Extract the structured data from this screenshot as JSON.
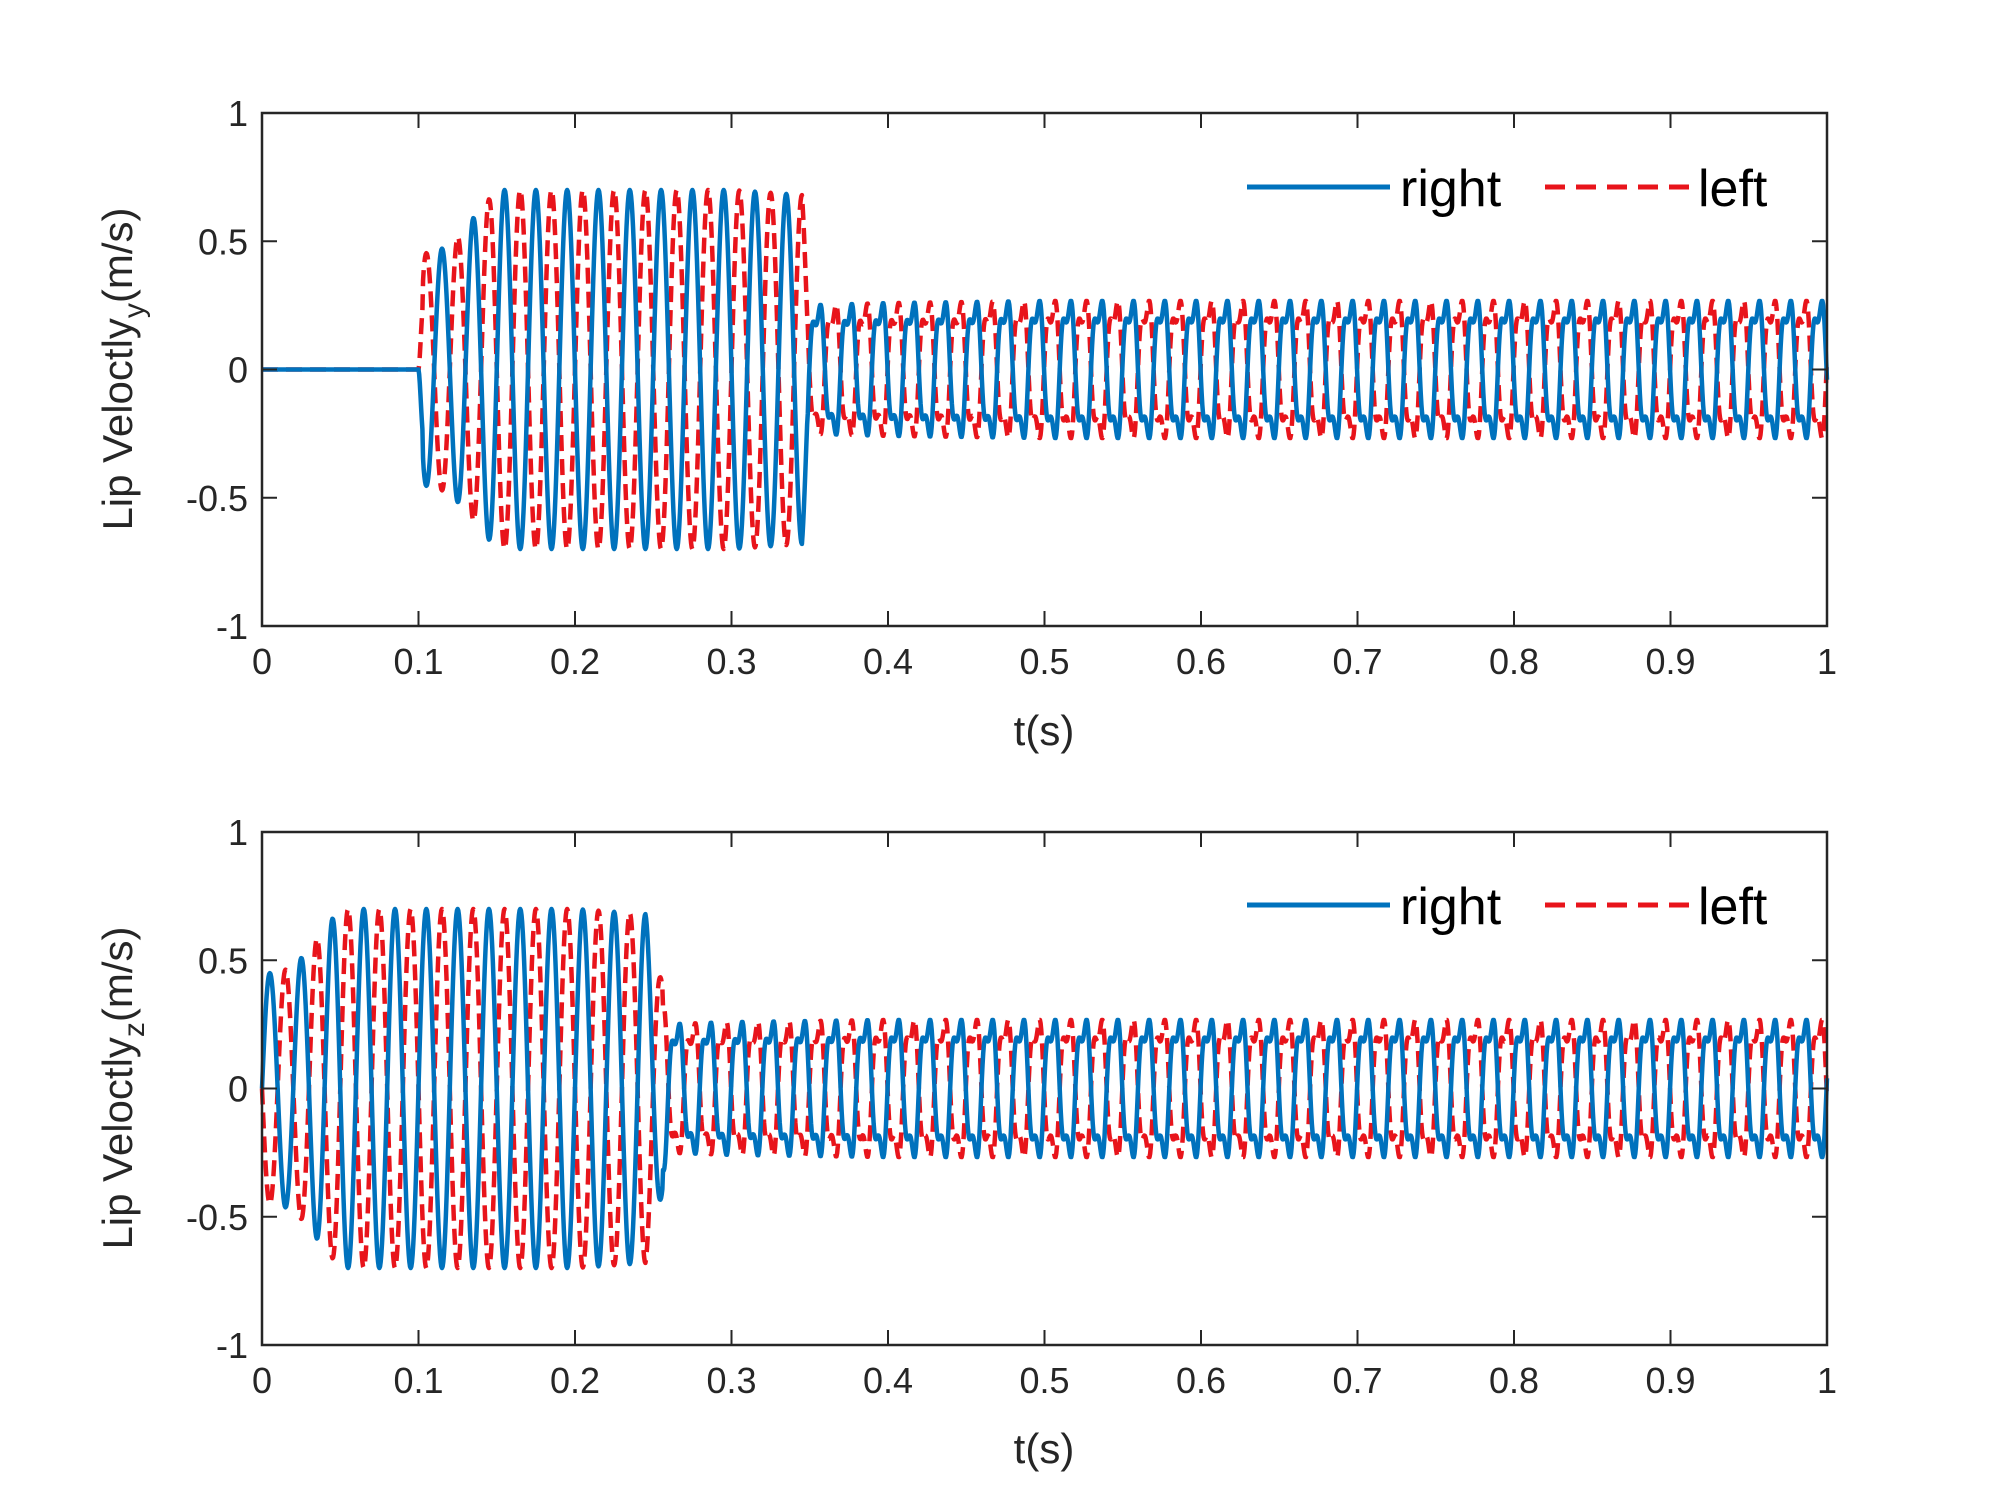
{
  "chart_data": [
    {
      "type": "line",
      "xlabel": "t(s)",
      "ylabel": {
        "base": "Lip Veloctly",
        "subscript": "y",
        "unit": "(m/s)"
      },
      "xlim": [
        0,
        1
      ],
      "ylim": [
        -1,
        1
      ],
      "xticks": [
        "0",
        "0.1",
        "0.2",
        "0.3",
        "0.4",
        "0.5",
        "0.6",
        "0.7",
        "0.8",
        "0.9",
        "1"
      ],
      "yticks": [
        "-1",
        "-0.5",
        "0",
        "0.5",
        "1"
      ],
      "grid": false,
      "legend": {
        "position": "top-right",
        "orientation": "horizontal"
      },
      "series": [
        {
          "name": "right",
          "color": "#0072BD",
          "dash": "solid",
          "x": [
            0,
            0.1,
            0.103,
            0.12,
            0.15,
            0.2,
            0.3,
            0.345,
            0.35,
            0.4,
            0.5,
            0.6,
            0.7,
            0.8,
            0.9,
            1.0
          ],
          "envelope_y": [
            0,
            0,
            0.45,
            0.48,
            0.7,
            0.7,
            0.7,
            0.68,
            0.3,
            0.31,
            0.32,
            0.32,
            0.32,
            0.32,
            0.32,
            0.32
          ],
          "oscillation_frequency_hz": 50,
          "phase_offset_deg": 180
        },
        {
          "name": "left",
          "color": "#E8141B",
          "dash": "dashed",
          "x": [
            0,
            0.1,
            0.103,
            0.12,
            0.15,
            0.2,
            0.3,
            0.345,
            0.35,
            0.4,
            0.5,
            0.6,
            0.7,
            0.8,
            0.9,
            1.0
          ],
          "envelope_y": [
            0,
            0,
            0.45,
            0.48,
            0.7,
            0.7,
            0.7,
            0.68,
            0.3,
            0.31,
            0.32,
            0.32,
            0.32,
            0.32,
            0.32,
            0.32
          ],
          "oscillation_frequency_hz": 50,
          "phase_offset_deg": 0
        }
      ]
    },
    {
      "type": "line",
      "xlabel": "t(s)",
      "ylabel": {
        "base": "Lip Veloctly",
        "subscript": "z",
        "unit": "(m/s)"
      },
      "xlim": [
        0,
        1
      ],
      "ylim": [
        -1,
        1
      ],
      "xticks": [
        "0",
        "0.1",
        "0.2",
        "0.3",
        "0.4",
        "0.5",
        "0.6",
        "0.7",
        "0.8",
        "0.9",
        "1"
      ],
      "yticks": [
        "-1",
        "-0.5",
        "0",
        "0.5",
        "1"
      ],
      "grid": false,
      "legend": {
        "position": "top-right",
        "orientation": "horizontal"
      },
      "series": [
        {
          "name": "right",
          "color": "#0072BD",
          "dash": "solid",
          "x": [
            0,
            0.005,
            0.02,
            0.05,
            0.1,
            0.2,
            0.245,
            0.26,
            0.3,
            0.4,
            0.5,
            0.6,
            0.7,
            0.8,
            0.9,
            1.0
          ],
          "envelope_y": [
            0.45,
            0.45,
            0.47,
            0.7,
            0.7,
            0.7,
            0.68,
            0.3,
            0.31,
            0.32,
            0.32,
            0.32,
            0.32,
            0.32,
            0.32,
            0.32
          ],
          "oscillation_frequency_hz": 50,
          "phase_offset_deg": 0
        },
        {
          "name": "left",
          "color": "#E8141B",
          "dash": "dashed",
          "x": [
            0,
            0.005,
            0.02,
            0.05,
            0.1,
            0.2,
            0.245,
            0.26,
            0.3,
            0.4,
            0.5,
            0.6,
            0.7,
            0.8,
            0.9,
            1.0
          ],
          "envelope_y": [
            0.45,
            0.45,
            0.47,
            0.7,
            0.7,
            0.7,
            0.68,
            0.3,
            0.31,
            0.32,
            0.32,
            0.32,
            0.32,
            0.32,
            0.32,
            0.32
          ],
          "oscillation_frequency_hz": 50,
          "phase_offset_deg": 180
        }
      ]
    }
  ]
}
